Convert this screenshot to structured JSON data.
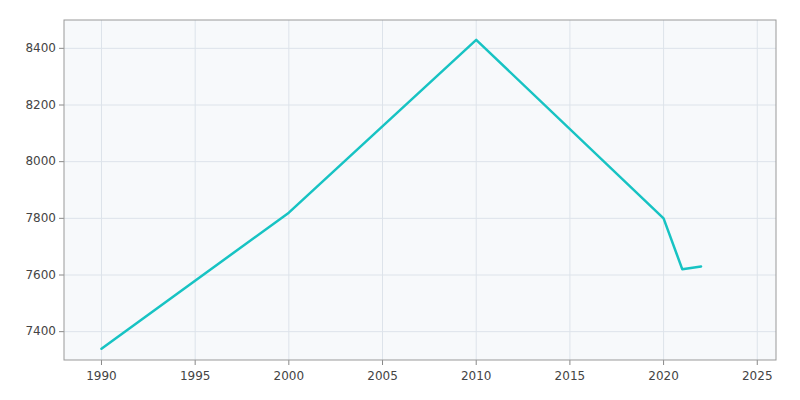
{
  "chart_data": {
    "type": "line",
    "x": [
      1990,
      2000,
      2010,
      2020,
      2021,
      2022
    ],
    "values": [
      7340,
      7820,
      8430,
      7800,
      7620,
      7630
    ],
    "color": "#17C3C3",
    "xlim": [
      1988,
      2026
    ],
    "ylim": [
      7300,
      8500
    ],
    "xticks": [
      1990,
      1995,
      2000,
      2005,
      2010,
      2015,
      2020,
      2025
    ],
    "yticks": [
      7400,
      7600,
      7800,
      8000,
      8200,
      8400
    ],
    "grid": true
  }
}
